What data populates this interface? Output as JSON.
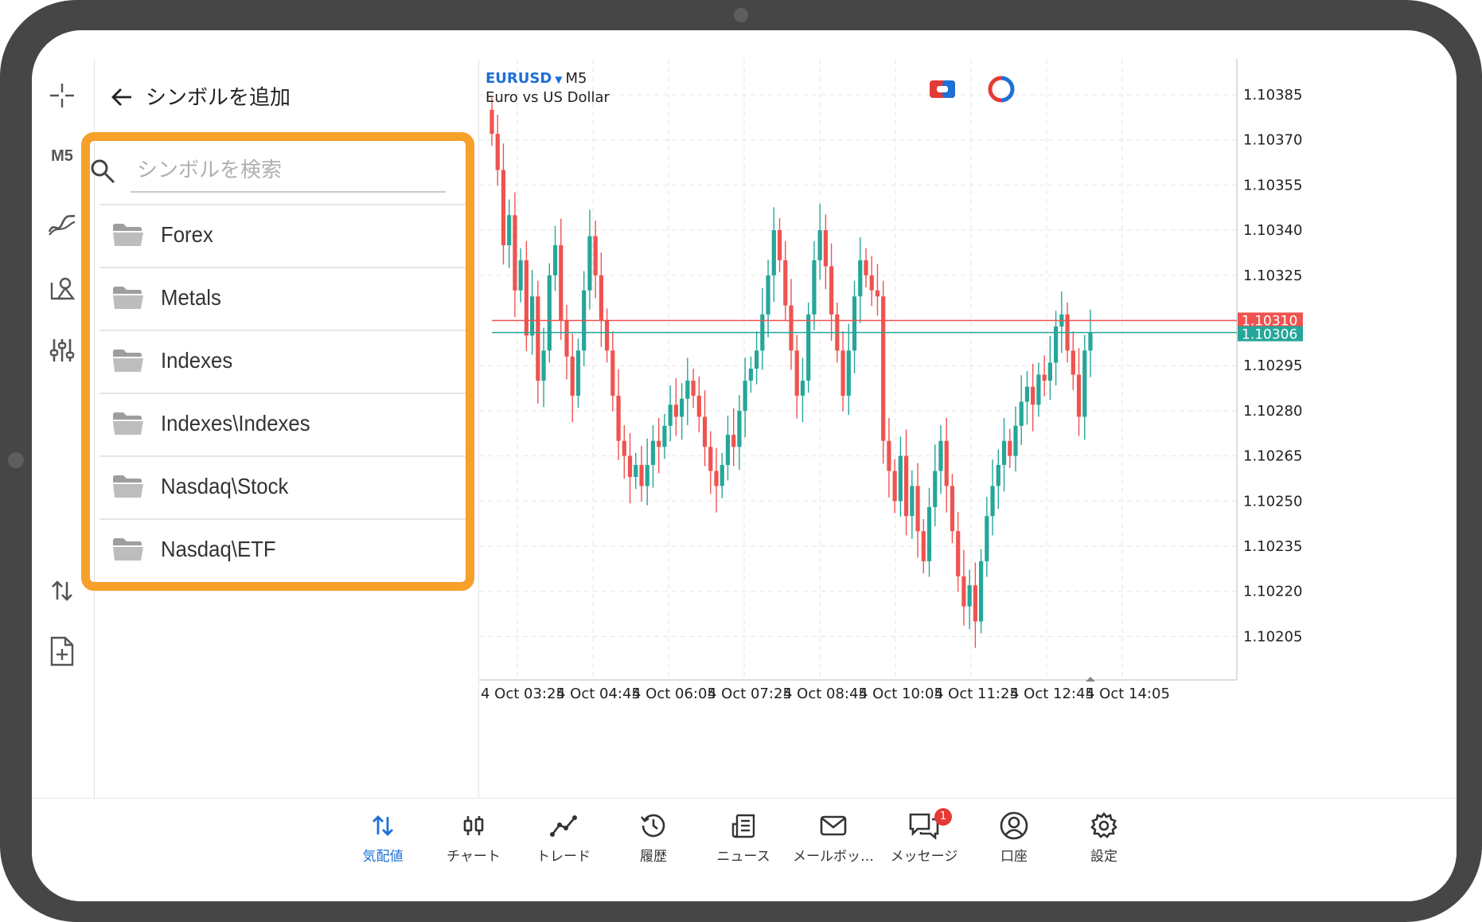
{
  "panel": {
    "title": "シンボルを追加",
    "search_placeholder": "シンボルを検索",
    "search_value": "",
    "folders": [
      "Forex",
      "Metals",
      "Indexes",
      "Indexes\\Indexes",
      "Nasdaq\\Stock",
      "Nasdaq\\ETF"
    ]
  },
  "toolbar": {
    "timeframe": "M5",
    "icons": [
      "crosshair-icon",
      "indicators-icon",
      "objects-icon",
      "settings-sliders-icon",
      "trade-arrows-icon",
      "new-order-icon"
    ]
  },
  "chart": {
    "symbol": "EURUSD",
    "timeframe": "M5",
    "description": "Euro vs US Dollar",
    "bid_price": "1.10306",
    "ask_price": "1.10310",
    "price_labels": [
      "1.10385",
      "1.10370",
      "1.10355",
      "1.10340",
      "1.10325",
      "1.10295",
      "1.10280",
      "1.10265",
      "1.10250",
      "1.10235",
      "1.10220",
      "1.10205"
    ],
    "time_labels": [
      "4 Oct 03:25",
      "4 Oct 04:45",
      "4 Oct 06:05",
      "4 Oct 07:25",
      "4 Oct 08:45",
      "4 Oct 10:05",
      "4 Oct 11:25",
      "4 Oct 12:45",
      "4 Oct 14:05"
    ],
    "colors": {
      "bull": "#26a69a",
      "bear": "#ef5350",
      "ask_line": "#ef5350",
      "bid_line": "#26a69a",
      "grid": "#e6e6e6"
    }
  },
  "nav": {
    "items": [
      {
        "label": "気配値",
        "icon": "quotes-icon",
        "active": true
      },
      {
        "label": "チャート",
        "icon": "chart-icon",
        "active": false
      },
      {
        "label": "トレード",
        "icon": "trade-icon",
        "active": false
      },
      {
        "label": "履歴",
        "icon": "history-icon",
        "active": false
      },
      {
        "label": "ニュース",
        "icon": "news-icon",
        "active": false
      },
      {
        "label": "メールボッ…",
        "icon": "mail-icon",
        "active": false
      },
      {
        "label": "メッセージ",
        "icon": "messages-icon",
        "active": false,
        "badge": "1"
      },
      {
        "label": "口座",
        "icon": "account-icon",
        "active": false
      },
      {
        "label": "設定",
        "icon": "settings-icon",
        "active": false
      }
    ]
  },
  "accent_color": "#1e6fd6",
  "highlight_color": "#f7a02a"
}
